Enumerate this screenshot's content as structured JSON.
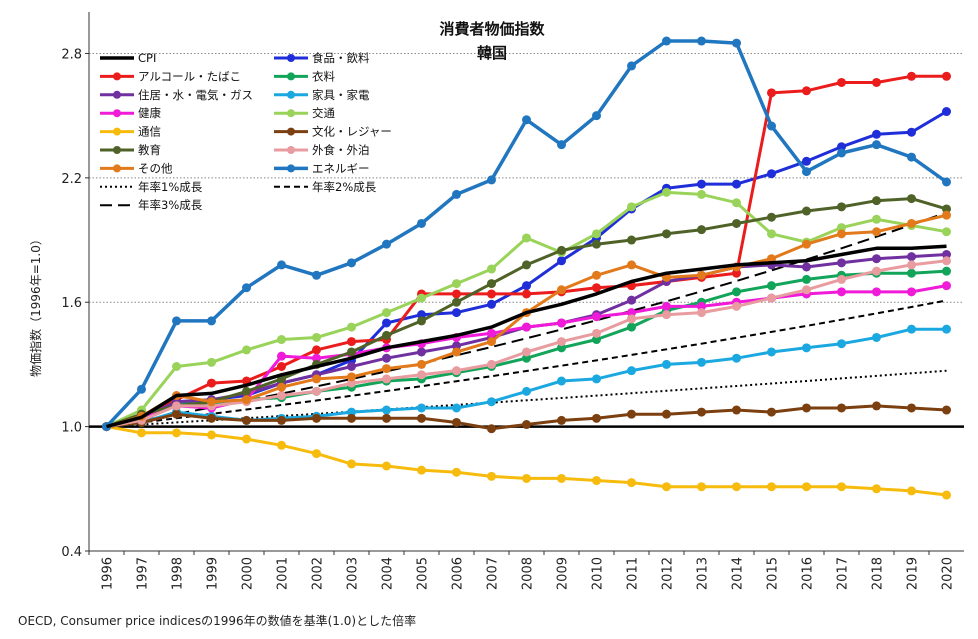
{
  "chart_data": {
    "type": "line",
    "title": "消費者物価指数",
    "subtitle": "韓国",
    "ylabel": "物価指数（1996年=1.0）",
    "xlabel": "",
    "source_note": "OECD, Consumer price indicesの1996年の数値を基準(1.0)とした倍率",
    "ylim": [
      0.4,
      3.0
    ],
    "yticks": [
      "0.4",
      "1.0",
      "1.6",
      "2.2",
      "2.8"
    ],
    "ytick_values": [
      0.4,
      1.0,
      1.6,
      2.2,
      2.8
    ],
    "x": [
      "1996",
      "1997",
      "1998",
      "1999",
      "2000",
      "2001",
      "2002",
      "2003",
      "2004",
      "2005",
      "2006",
      "2007",
      "2008",
      "2009",
      "2010",
      "2011",
      "2012",
      "2013",
      "2014",
      "2015",
      "2016",
      "2017",
      "2018",
      "2019",
      "2020"
    ],
    "grid": "horizontal dotted at 1.6, 2.2, 2.8",
    "legend_position": "top-left",
    "series": [
      {
        "name": "CPI",
        "color": "#000000",
        "marker": false,
        "dash": "solid",
        "width": 3.5,
        "values": [
          1.0,
          1.045,
          1.15,
          1.16,
          1.2,
          1.25,
          1.29,
          1.33,
          1.38,
          1.41,
          1.44,
          1.48,
          1.55,
          1.59,
          1.64,
          1.7,
          1.74,
          1.76,
          1.78,
          1.79,
          1.8,
          1.83,
          1.86,
          1.86,
          1.87
        ]
      },
      {
        "name": "食品・飲料",
        "color": "#1f2ed8",
        "marker": true,
        "dash": "solid",
        "width": 3,
        "values": [
          1.0,
          1.03,
          1.12,
          1.13,
          1.15,
          1.21,
          1.25,
          1.32,
          1.5,
          1.54,
          1.55,
          1.59,
          1.68,
          1.8,
          1.91,
          2.05,
          2.15,
          2.17,
          2.17,
          2.22,
          2.28,
          2.35,
          2.41,
          2.42,
          2.52
        ]
      },
      {
        "name": "アルコール・たばこ",
        "color": "#ea1c1c",
        "marker": true,
        "dash": "solid",
        "width": 3,
        "values": [
          1.0,
          1.04,
          1.13,
          1.21,
          1.22,
          1.29,
          1.37,
          1.41,
          1.42,
          1.64,
          1.64,
          1.64,
          1.64,
          1.65,
          1.67,
          1.68,
          1.7,
          1.72,
          1.74,
          2.61,
          2.62,
          2.66,
          2.66,
          2.69,
          2.69
        ]
      },
      {
        "name": "衣料",
        "color": "#12a55a",
        "marker": true,
        "dash": "solid",
        "width": 3,
        "values": [
          1.0,
          1.04,
          1.11,
          1.11,
          1.13,
          1.14,
          1.17,
          1.19,
          1.22,
          1.23,
          1.26,
          1.29,
          1.33,
          1.38,
          1.42,
          1.48,
          1.56,
          1.6,
          1.65,
          1.68,
          1.71,
          1.73,
          1.74,
          1.74,
          1.75
        ]
      },
      {
        "name": "住居・水・電気・ガス",
        "color": "#7030a0",
        "marker": true,
        "dash": "solid",
        "width": 3,
        "values": [
          1.0,
          1.04,
          1.12,
          1.13,
          1.16,
          1.21,
          1.25,
          1.29,
          1.33,
          1.36,
          1.39,
          1.43,
          1.48,
          1.5,
          1.54,
          1.61,
          1.7,
          1.73,
          1.77,
          1.78,
          1.77,
          1.79,
          1.81,
          1.82,
          1.83
        ]
      },
      {
        "name": "家具・家電",
        "color": "#1ba8e0",
        "marker": true,
        "dash": "solid",
        "width": 3,
        "values": [
          1.0,
          1.02,
          1.07,
          1.05,
          1.03,
          1.04,
          1.05,
          1.07,
          1.08,
          1.09,
          1.09,
          1.12,
          1.17,
          1.22,
          1.23,
          1.27,
          1.3,
          1.31,
          1.33,
          1.36,
          1.38,
          1.4,
          1.43,
          1.47,
          1.47
        ]
      },
      {
        "name": "健康",
        "color": "#f01bd8",
        "marker": true,
        "dash": "solid",
        "width": 3,
        "values": [
          1.0,
          1.05,
          1.1,
          1.09,
          1.13,
          1.34,
          1.33,
          1.35,
          1.38,
          1.4,
          1.43,
          1.45,
          1.48,
          1.5,
          1.53,
          1.55,
          1.58,
          1.58,
          1.6,
          1.62,
          1.64,
          1.65,
          1.65,
          1.65,
          1.68
        ]
      },
      {
        "name": "交通",
        "color": "#99d35a",
        "marker": true,
        "dash": "solid",
        "width": 3,
        "values": [
          1.0,
          1.08,
          1.29,
          1.31,
          1.37,
          1.42,
          1.43,
          1.48,
          1.55,
          1.62,
          1.69,
          1.76,
          1.91,
          1.84,
          1.93,
          2.06,
          2.13,
          2.12,
          2.08,
          1.93,
          1.89,
          1.96,
          2.0,
          1.97,
          1.94
        ]
      },
      {
        "name": "通信",
        "color": "#f6bb0d",
        "marker": true,
        "dash": "solid",
        "width": 3,
        "values": [
          1.0,
          0.97,
          0.97,
          0.96,
          0.94,
          0.91,
          0.87,
          0.82,
          0.81,
          0.79,
          0.78,
          0.76,
          0.75,
          0.75,
          0.74,
          0.73,
          0.71,
          0.71,
          0.71,
          0.71,
          0.71,
          0.71,
          0.7,
          0.69,
          0.67
        ]
      },
      {
        "name": "文化・レジャー",
        "color": "#7b3f10",
        "marker": true,
        "dash": "solid",
        "width": 3,
        "values": [
          1.0,
          1.02,
          1.06,
          1.04,
          1.03,
          1.03,
          1.04,
          1.04,
          1.04,
          1.04,
          1.02,
          0.99,
          1.01,
          1.03,
          1.04,
          1.06,
          1.06,
          1.07,
          1.08,
          1.07,
          1.09,
          1.09,
          1.1,
          1.09,
          1.08
        ]
      },
      {
        "name": "教育",
        "color": "#4f6228",
        "marker": true,
        "dash": "solid",
        "width": 3,
        "values": [
          1.0,
          1.06,
          1.1,
          1.12,
          1.17,
          1.23,
          1.3,
          1.36,
          1.44,
          1.51,
          1.6,
          1.69,
          1.78,
          1.85,
          1.88,
          1.9,
          1.93,
          1.95,
          1.98,
          2.01,
          2.04,
          2.06,
          2.09,
          2.1,
          2.05
        ]
      },
      {
        "name": "外食・外泊",
        "color": "#e89ca0",
        "marker": true,
        "dash": "solid",
        "width": 3,
        "values": [
          1.0,
          1.03,
          1.1,
          1.1,
          1.12,
          1.15,
          1.17,
          1.21,
          1.23,
          1.25,
          1.27,
          1.3,
          1.36,
          1.41,
          1.45,
          1.52,
          1.54,
          1.55,
          1.58,
          1.62,
          1.66,
          1.71,
          1.75,
          1.78,
          1.8
        ]
      },
      {
        "name": "その他",
        "color": "#e2791a",
        "marker": true,
        "dash": "solid",
        "width": 3,
        "values": [
          1.0,
          1.05,
          1.15,
          1.12,
          1.13,
          1.19,
          1.23,
          1.24,
          1.28,
          1.3,
          1.36,
          1.41,
          1.55,
          1.66,
          1.73,
          1.78,
          1.72,
          1.73,
          1.77,
          1.81,
          1.88,
          1.93,
          1.94,
          1.98,
          2.02
        ]
      },
      {
        "name": "エネルギー",
        "color": "#2176c0",
        "marker": true,
        "dash": "solid",
        "width": 3.5,
        "values": [
          1.0,
          1.18,
          1.51,
          1.51,
          1.67,
          1.78,
          1.73,
          1.79,
          1.88,
          1.98,
          2.12,
          2.19,
          2.48,
          2.36,
          2.5,
          2.74,
          2.86,
          2.86,
          2.85,
          2.45,
          2.23,
          2.32,
          2.36,
          2.3,
          2.18
        ]
      },
      {
        "name": "年率1%成長",
        "color": "#000000",
        "marker": false,
        "dash": "dotted",
        "width": 2,
        "values": [
          1.0,
          1.01,
          1.0201,
          1.0303,
          1.0406,
          1.051,
          1.0615,
          1.0721,
          1.0829,
          1.0937,
          1.1046,
          1.1157,
          1.1268,
          1.1381,
          1.1495,
          1.161,
          1.1726,
          1.1843,
          1.1961,
          1.2081,
          1.2202,
          1.2324,
          1.2447,
          1.2572,
          1.2697
        ]
      },
      {
        "name": "年率2%成長",
        "color": "#000000",
        "marker": false,
        "dash": "dashed",
        "width": 2,
        "values": [
          1.0,
          1.02,
          1.0404,
          1.0612,
          1.0824,
          1.1041,
          1.1262,
          1.1487,
          1.1717,
          1.1951,
          1.219,
          1.2434,
          1.2682,
          1.2936,
          1.3195,
          1.3459,
          1.3728,
          1.4002,
          1.4282,
          1.4568,
          1.4859,
          1.5157,
          1.546,
          1.5769,
          1.6084
        ]
      },
      {
        "name": "年率3%成長",
        "color": "#000000",
        "marker": false,
        "dash": "longdash",
        "width": 2,
        "values": [
          1.0,
          1.03,
          1.0609,
          1.0927,
          1.1255,
          1.1593,
          1.1941,
          1.2299,
          1.2668,
          1.3048,
          1.3439,
          1.3842,
          1.4258,
          1.4685,
          1.5126,
          1.558,
          1.6047,
          1.6528,
          1.7024,
          1.7535,
          1.8061,
          1.8603,
          1.9161,
          1.9736,
          2.0328
        ]
      }
    ]
  }
}
